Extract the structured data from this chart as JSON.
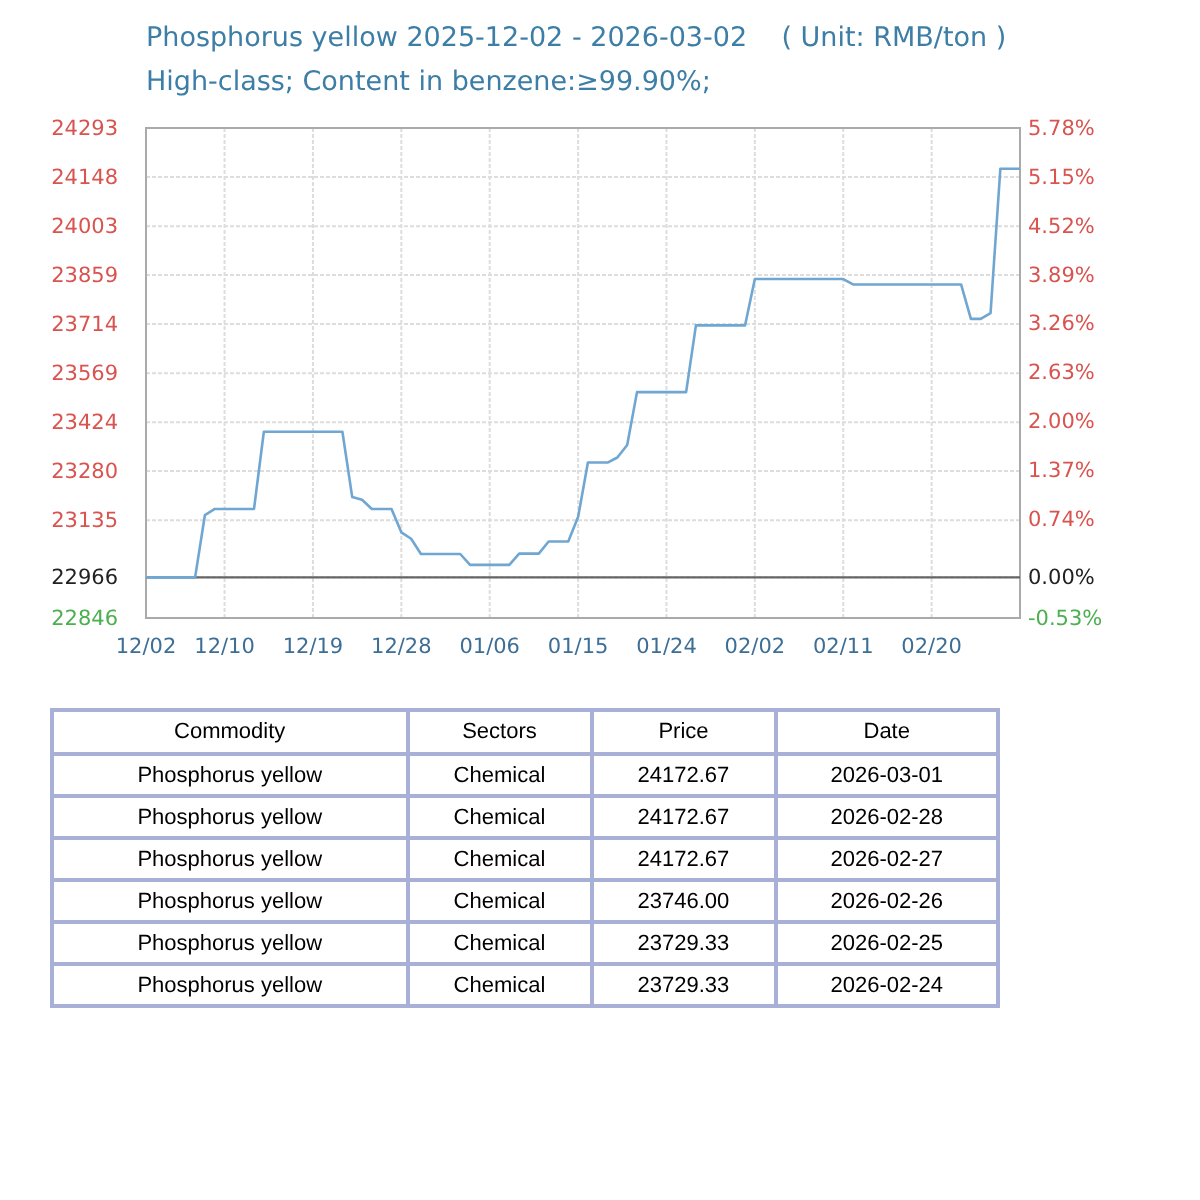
{
  "chart_data": [
    {
      "type": "line",
      "title": "Phosphorus yellow 2025-12-02 - 2026-03-02    ( Unit: RMB/ton )",
      "subtitle": "High-class; Content in benzene:≥99.90%;",
      "x": [
        "2025-12-02",
        "2025-12-07",
        "2025-12-08",
        "2025-12-09",
        "2025-12-13",
        "2025-12-14",
        "2025-12-22",
        "2025-12-23",
        "2025-12-24",
        "2025-12-25",
        "2025-12-27",
        "2025-12-28",
        "2025-12-29",
        "2025-12-30",
        "2026-01-03",
        "2026-01-04",
        "2026-01-08",
        "2026-01-09",
        "2026-01-11",
        "2026-01-12",
        "2026-01-14",
        "2026-01-15",
        "2026-01-16",
        "2026-01-18",
        "2026-01-19",
        "2026-01-20",
        "2026-01-21",
        "2026-01-26",
        "2026-01-27",
        "2026-02-01",
        "2026-02-02",
        "2026-02-11",
        "2026-02-12",
        "2026-02-23",
        "2026-02-24",
        "2026-02-25",
        "2026-02-26",
        "2026-02-27",
        "2026-02-28",
        "2026-03-01"
      ],
      "series": [
        {
          "color": "#6fa6d2",
          "values": [
            22966,
            22966,
            23150,
            23168,
            23168,
            23396,
            23396,
            23203,
            23195,
            23168,
            23168,
            23099,
            23080,
            23035,
            23035,
            23003,
            23003,
            23036,
            23036,
            23072,
            23072,
            23144,
            23305,
            23305,
            23320,
            23357,
            23513,
            23513,
            23710,
            23710,
            23847,
            23847,
            23831,
            23831,
            23729.33,
            23729.33,
            23746,
            24172.67,
            24172.67,
            24172.67
          ]
        }
      ],
      "xlim": [
        "2025-12-02",
        "2026-03-01"
      ],
      "xticks": [
        {
          "value": "2025-12-02",
          "label": "12/02"
        },
        {
          "value": "2025-12-10",
          "label": "12/10"
        },
        {
          "value": "2025-12-19",
          "label": "12/19"
        },
        {
          "value": "2025-12-28",
          "label": "12/28"
        },
        {
          "value": "2026-01-06",
          "label": "01/06"
        },
        {
          "value": "2026-01-15",
          "label": "01/15"
        },
        {
          "value": "2026-01-24",
          "label": "01/24"
        },
        {
          "value": "2026-02-02",
          "label": "02/02"
        },
        {
          "value": "2026-02-11",
          "label": "02/11"
        },
        {
          "value": "2026-02-20",
          "label": "02/20"
        }
      ],
      "ylim": [
        22846,
        24293
      ],
      "yticks": [
        22846,
        22966,
        23135,
        23280,
        23424,
        23569,
        23714,
        23859,
        24003,
        24148,
        24293
      ],
      "y2lim": [
        -0.53,
        5.78
      ],
      "y2ticks": [
        {
          "value": -0.53,
          "label": "-0.53%"
        },
        {
          "value": 0,
          "label": "0.00%"
        },
        {
          "value": 0.74,
          "label": "0.74%"
        },
        {
          "value": 1.37,
          "label": "1.37%"
        },
        {
          "value": 2,
          "label": "2.00%"
        },
        {
          "value": 2.63,
          "label": "2.63%"
        },
        {
          "value": 3.26,
          "label": "3.26%"
        },
        {
          "value": 3.89,
          "label": "3.89%"
        },
        {
          "value": 4.52,
          "label": "4.52%"
        },
        {
          "value": 5.15,
          "label": "5.15%"
        },
        {
          "value": 5.78,
          "label": "5.78%"
        }
      ],
      "ref_lines": [
        {
          "axis": "y",
          "value": 22966,
          "color": "#666666"
        }
      ],
      "grid": true,
      "marker": "none",
      "line_style": "solid"
    },
    {
      "type": "other",
      "categories": [
        "Commodity",
        "Sectors",
        "Price",
        "Date"
      ],
      "cell_labels": [
        [
          "Phosphorus yellow",
          "Chemical",
          "24172.67",
          "2026-03-01"
        ],
        [
          "Phosphorus yellow",
          "Chemical",
          "24172.67",
          "2026-02-28"
        ],
        [
          "Phosphorus yellow",
          "Chemical",
          "24172.67",
          "2026-02-27"
        ],
        [
          "Phosphorus yellow",
          "Chemical",
          "23746.00",
          "2026-02-26"
        ],
        [
          "Phosphorus yellow",
          "Chemical",
          "23729.33",
          "2026-02-25"
        ],
        [
          "Phosphorus yellow",
          "Chemical",
          "23729.33",
          "2026-02-24"
        ]
      ]
    }
  ]
}
